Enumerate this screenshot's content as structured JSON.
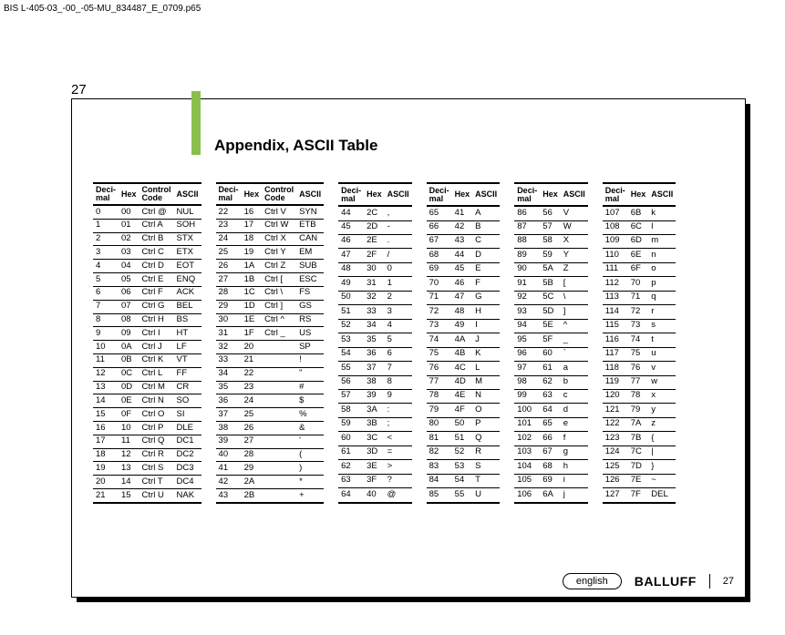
{
  "top_label": "BIS L-405-03_-00_-05-MU_834487_E_0709.p65",
  "page_number_top": "27",
  "title": "Appendix, ASCII Table",
  "footer": {
    "lang": "english",
    "brand": "BALLUFF",
    "page": "27"
  },
  "columns": [
    {
      "headers": [
        "Deci-\nmal",
        "Hex",
        "Control\nCode",
        "ASCII"
      ],
      "rows": [
        [
          "0",
          "00",
          "Ctrl @",
          "NUL"
        ],
        [
          "1",
          "01",
          "Ctrl A",
          "SOH"
        ],
        [
          "2",
          "02",
          "Ctrl B",
          "STX"
        ],
        [
          "3",
          "03",
          "Ctrl C",
          "ETX"
        ],
        [
          "4",
          "04",
          "Ctrl D",
          "EOT"
        ],
        [
          "5",
          "05",
          "Ctrl E",
          "ENQ"
        ],
        [
          "6",
          "06",
          "Ctrl F",
          "ACK"
        ],
        [
          "7",
          "07",
          "Ctrl G",
          "BEL"
        ],
        [
          "8",
          "08",
          "Ctrl H",
          "BS"
        ],
        [
          "9",
          "09",
          "Ctrl I",
          "HT"
        ],
        [
          "10",
          "0A",
          "Ctrl J",
          "LF"
        ],
        [
          "11",
          "0B",
          "Ctrl K",
          "VT"
        ],
        [
          "12",
          "0C",
          "Ctrl L",
          "FF"
        ],
        [
          "13",
          "0D",
          "Ctrl M",
          "CR"
        ],
        [
          "14",
          "0E",
          "Ctrl N",
          "SO"
        ],
        [
          "15",
          "0F",
          "Ctrl O",
          "SI"
        ],
        [
          "16",
          "10",
          "Ctrl P",
          "DLE"
        ],
        [
          "17",
          "11",
          "Ctrl Q",
          "DC1"
        ],
        [
          "18",
          "12",
          "Ctrl R",
          "DC2"
        ],
        [
          "19",
          "13",
          "Ctrl S",
          "DC3"
        ],
        [
          "20",
          "14",
          "Ctrl T",
          "DC4"
        ],
        [
          "21",
          "15",
          "Ctrl U",
          "NAK"
        ]
      ]
    },
    {
      "headers": [
        "Deci-\nmal",
        "Hex",
        "Control\nCode",
        "ASCII"
      ],
      "rows": [
        [
          "22",
          "16",
          "Ctrl V",
          "SYN"
        ],
        [
          "23",
          "17",
          "Ctrl W",
          "ETB"
        ],
        [
          "24",
          "18",
          "Ctrl X",
          "CAN"
        ],
        [
          "25",
          "19",
          "Ctrl Y",
          "EM"
        ],
        [
          "26",
          "1A",
          "Ctrl Z",
          "SUB"
        ],
        [
          "27",
          "1B",
          "Ctrl [",
          "ESC"
        ],
        [
          "28",
          "1C",
          "Ctrl \\",
          "FS"
        ],
        [
          "29",
          "1D",
          "Ctrl ]",
          "GS"
        ],
        [
          "30",
          "1E",
          "Ctrl ^",
          "RS"
        ],
        [
          "31",
          "1F",
          "Ctrl _",
          "US"
        ],
        [
          "32",
          "20",
          "",
          "SP"
        ],
        [
          "33",
          "21",
          "",
          "!"
        ],
        [
          "34",
          "22",
          "",
          "\""
        ],
        [
          "35",
          "23",
          "",
          "#"
        ],
        [
          "36",
          "24",
          "",
          "$"
        ],
        [
          "37",
          "25",
          "",
          "%"
        ],
        [
          "38",
          "26",
          "",
          "&"
        ],
        [
          "39",
          "27",
          "",
          "'"
        ],
        [
          "40",
          "28",
          "",
          "("
        ],
        [
          "41",
          "29",
          "",
          ")"
        ],
        [
          "42",
          "2A",
          "",
          "*"
        ],
        [
          "43",
          "2B",
          "",
          "+"
        ]
      ]
    },
    {
      "headers": [
        "Deci-\nmal",
        "Hex",
        "ASCII"
      ],
      "rows": [
        [
          "44",
          "2C",
          ","
        ],
        [
          "45",
          "2D",
          "-"
        ],
        [
          "46",
          "2E",
          "."
        ],
        [
          "47",
          "2F",
          "/"
        ],
        [
          "48",
          "30",
          "0"
        ],
        [
          "49",
          "31",
          "1"
        ],
        [
          "50",
          "32",
          "2"
        ],
        [
          "51",
          "33",
          "3"
        ],
        [
          "52",
          "34",
          "4"
        ],
        [
          "53",
          "35",
          "5"
        ],
        [
          "54",
          "36",
          "6"
        ],
        [
          "55",
          "37",
          "7"
        ],
        [
          "56",
          "38",
          "8"
        ],
        [
          "57",
          "39",
          "9"
        ],
        [
          "58",
          "3A",
          ":"
        ],
        [
          "59",
          "3B",
          ";"
        ],
        [
          "60",
          "3C",
          "<"
        ],
        [
          "61",
          "3D",
          "="
        ],
        [
          "62",
          "3E",
          ">"
        ],
        [
          "63",
          "3F",
          "?"
        ],
        [
          "64",
          "40",
          "@"
        ]
      ]
    },
    {
      "headers": [
        "Deci-\nmal",
        "Hex",
        "ASCII"
      ],
      "rows": [
        [
          "65",
          "41",
          "A"
        ],
        [
          "66",
          "42",
          "B"
        ],
        [
          "67",
          "43",
          "C"
        ],
        [
          "68",
          "44",
          "D"
        ],
        [
          "69",
          "45",
          "E"
        ],
        [
          "70",
          "46",
          "F"
        ],
        [
          "71",
          "47",
          "G"
        ],
        [
          "72",
          "48",
          "H"
        ],
        [
          "73",
          "49",
          "I"
        ],
        [
          "74",
          "4A",
          "J"
        ],
        [
          "75",
          "4B",
          "K"
        ],
        [
          "76",
          "4C",
          "L"
        ],
        [
          "77",
          "4D",
          "M"
        ],
        [
          "78",
          "4E",
          "N"
        ],
        [
          "79",
          "4F",
          "O"
        ],
        [
          "80",
          "50",
          "P"
        ],
        [
          "81",
          "51",
          "Q"
        ],
        [
          "82",
          "52",
          "R"
        ],
        [
          "83",
          "53",
          "S"
        ],
        [
          "84",
          "54",
          "T"
        ],
        [
          "85",
          "55",
          "U"
        ]
      ]
    },
    {
      "headers": [
        "Deci-\nmal",
        "Hex",
        "ASCII"
      ],
      "rows": [
        [
          "86",
          "56",
          "V"
        ],
        [
          "87",
          "57",
          "W"
        ],
        [
          "88",
          "58",
          "X"
        ],
        [
          "89",
          "59",
          "Y"
        ],
        [
          "90",
          "5A",
          "Z"
        ],
        [
          "91",
          "5B",
          "["
        ],
        [
          "92",
          "5C",
          "\\"
        ],
        [
          "93",
          "5D",
          "]"
        ],
        [
          "94",
          "5E",
          "^"
        ],
        [
          "95",
          "5F",
          "_"
        ],
        [
          "96",
          "60",
          "`"
        ],
        [
          "97",
          "61",
          "a"
        ],
        [
          "98",
          "62",
          "b"
        ],
        [
          "99",
          "63",
          "c"
        ],
        [
          "100",
          "64",
          "d"
        ],
        [
          "101",
          "65",
          "e"
        ],
        [
          "102",
          "66",
          "f"
        ],
        [
          "103",
          "67",
          "g"
        ],
        [
          "104",
          "68",
          "h"
        ],
        [
          "105",
          "69",
          "i"
        ],
        [
          "106",
          "6A",
          "j"
        ]
      ]
    },
    {
      "headers": [
        "Deci-\nmal",
        "Hex",
        "ASCII"
      ],
      "rows": [
        [
          "107",
          "6B",
          "k"
        ],
        [
          "108",
          "6C",
          "l"
        ],
        [
          "109",
          "6D",
          "m"
        ],
        [
          "110",
          "6E",
          "n"
        ],
        [
          "111",
          "6F",
          "o"
        ],
        [
          "112",
          "70",
          "p"
        ],
        [
          "113",
          "71",
          "q"
        ],
        [
          "114",
          "72",
          "r"
        ],
        [
          "115",
          "73",
          "s"
        ],
        [
          "116",
          "74",
          "t"
        ],
        [
          "117",
          "75",
          "u"
        ],
        [
          "118",
          "76",
          "v"
        ],
        [
          "119",
          "77",
          "w"
        ],
        [
          "120",
          "78",
          "x"
        ],
        [
          "121",
          "79",
          "y"
        ],
        [
          "122",
          "7A",
          "z"
        ],
        [
          "123",
          "7B",
          "{"
        ],
        [
          "124",
          "7C",
          "|"
        ],
        [
          "125",
          "7D",
          "}"
        ],
        [
          "126",
          "7E",
          "~"
        ],
        [
          "127",
          "7F",
          "DEL"
        ]
      ]
    }
  ]
}
